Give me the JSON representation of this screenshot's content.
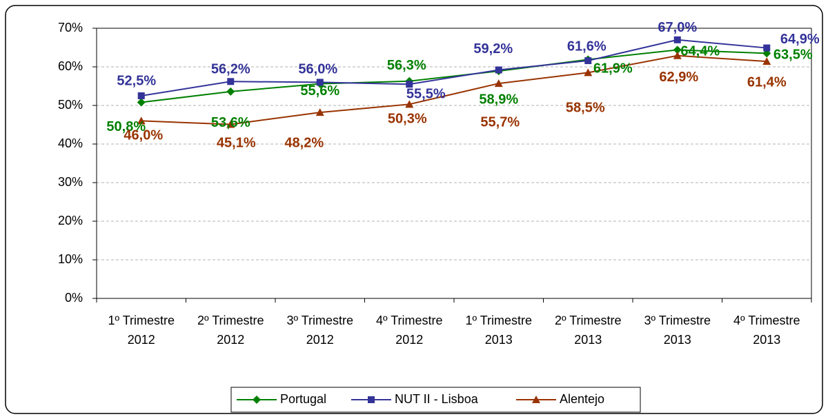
{
  "chart_data": {
    "type": "line",
    "categories": [
      [
        "1º Trimestre",
        "2012"
      ],
      [
        "2º Trimestre",
        "2012"
      ],
      [
        "3º Trimestre",
        "2012"
      ],
      [
        "4º Trimestre",
        "2012"
      ],
      [
        "1º Trimestre",
        "2013"
      ],
      [
        "2º Trimestre",
        "2013"
      ],
      [
        "3º Trimestre",
        "2013"
      ],
      [
        "4º Trimestre",
        "2013"
      ]
    ],
    "series": [
      {
        "name": "Portugal",
        "color": "#008000",
        "marker": "diamond",
        "values": [
          50.8,
          53.6,
          55.6,
          56.3,
          58.9,
          61.9,
          64.4,
          63.5
        ],
        "value_labels": [
          "50,8%",
          "53,6%",
          "55,6%",
          "56,3%",
          "58,9%",
          "61,9%",
          "64,4%",
          "63,5%"
        ]
      },
      {
        "name": "NUT II - Lisboa",
        "color": "#333399",
        "marker": "square",
        "values": [
          52.5,
          56.2,
          56.0,
          55.5,
          59.2,
          61.6,
          67.0,
          64.9
        ],
        "value_labels": [
          "52,5%",
          "56,2%",
          "56,0%",
          "55,5%",
          "59,2%",
          "61,6%",
          "67,0%",
          "64,9%"
        ]
      },
      {
        "name": "Alentejo",
        "color": "#993300",
        "marker": "triangle",
        "values": [
          46.0,
          45.1,
          48.2,
          50.3,
          55.7,
          58.5,
          62.9,
          61.4
        ],
        "value_labels": [
          "46,0%",
          "45,1%",
          "48,2%",
          "50,3%",
          "55,7%",
          "58,5%",
          "62,9%",
          "61,4%"
        ]
      }
    ],
    "ylim": [
      0,
      70
    ],
    "yticks": [
      {
        "value": 0,
        "label": "0%"
      },
      {
        "value": 10,
        "label": "10%"
      },
      {
        "value": 20,
        "label": "20%"
      },
      {
        "value": 30,
        "label": "30%"
      },
      {
        "value": 40,
        "label": "40%"
      },
      {
        "value": 50,
        "label": "50%"
      },
      {
        "value": 60,
        "label": "60%"
      },
      {
        "value": 70,
        "label": "70%"
      }
    ],
    "grid": true,
    "legend": "bottom"
  }
}
